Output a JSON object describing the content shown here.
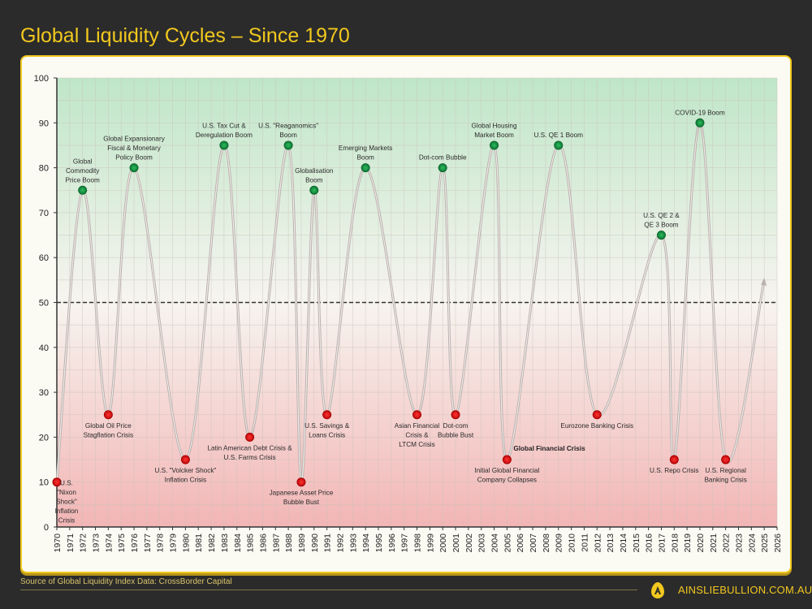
{
  "header": {
    "title": "Global Liquidity Cycles – Since 1970"
  },
  "footer": {
    "source": "Source of Global Liquidity Index Data: CrossBorder Capital",
    "site": "AINSLIEBULLION.COM.AU",
    "logo_letter": "A"
  },
  "colors": {
    "accent": "#f2c81e",
    "boom": "#1a9e4a",
    "crisis": "#e01b1b",
    "line": "#b0aaa8",
    "background": "#2b2b2b"
  },
  "chart_data": {
    "type": "line",
    "title": "Global Liquidity Cycles – Since 1970",
    "xlim": [
      1970,
      2026
    ],
    "ylim": [
      0,
      100
    ],
    "yticks": [
      0,
      10,
      20,
      30,
      40,
      50,
      60,
      70,
      80,
      90,
      100
    ],
    "xticks": [
      1970,
      1971,
      1972,
      1973,
      1974,
      1975,
      1976,
      1977,
      1978,
      1979,
      1980,
      1981,
      1982,
      1983,
      1984,
      1985,
      1986,
      1987,
      1988,
      1989,
      1990,
      1991,
      1992,
      1993,
      1994,
      1995,
      1996,
      1997,
      1998,
      1999,
      2000,
      2001,
      2002,
      2003,
      2004,
      2005,
      2006,
      2007,
      2008,
      2009,
      2010,
      2011,
      2012,
      2013,
      2014,
      2015,
      2016,
      2017,
      2018,
      2019,
      2020,
      2021,
      2022,
      2023,
      2024,
      2025,
      2026
    ],
    "grid": true,
    "reference_line": {
      "y": 50,
      "style": "dashed"
    },
    "background": "gradient green (top) to red (bottom)",
    "events": [
      {
        "x": 1970,
        "y": 10,
        "type": "crisis",
        "label": [
          "U.S.",
          "\"Nixon",
          "Shock\"",
          "Inflation",
          "Crisis"
        ]
      },
      {
        "x": 1972,
        "y": 75,
        "type": "boom",
        "label": [
          "Global",
          "Commodity",
          "Price Boom"
        ]
      },
      {
        "x": 1974,
        "y": 25,
        "type": "crisis",
        "label": [
          "Global Oil Price",
          "Stagflation Crisis"
        ]
      },
      {
        "x": 1976,
        "y": 80,
        "type": "boom",
        "label": [
          "Global Expansionary",
          "Fiscal & Monetary",
          "Policy Boom"
        ]
      },
      {
        "x": 1980,
        "y": 15,
        "type": "crisis",
        "label": [
          "U.S. \"Volcker Shock\"",
          "Inflation Crisis"
        ]
      },
      {
        "x": 1983,
        "y": 85,
        "type": "boom",
        "label": [
          "U.S. Tax Cut &",
          "Deregulation Boom"
        ]
      },
      {
        "x": 1985,
        "y": 20,
        "type": "crisis",
        "label": [
          "Latin American Debt Crisis &",
          "U.S. Farms Crisis"
        ]
      },
      {
        "x": 1988,
        "y": 85,
        "type": "boom",
        "label": [
          "U.S. \"Reaganomics\"",
          "Boom"
        ]
      },
      {
        "x": 1989,
        "y": 10,
        "type": "crisis",
        "label": [
          "Japanese Asset Price",
          "Bubble Bust"
        ]
      },
      {
        "x": 1990,
        "y": 75,
        "type": "boom",
        "label": [
          "Globalisation",
          "Boom"
        ]
      },
      {
        "x": 1991,
        "y": 25,
        "type": "crisis",
        "label": [
          "U.S. Savings &",
          "Loans Crisis"
        ]
      },
      {
        "x": 1994,
        "y": 80,
        "type": "boom",
        "label": [
          "Emerging Markets",
          "Boom"
        ]
      },
      {
        "x": 1998,
        "y": 25,
        "type": "crisis",
        "label": [
          "Asian Financial",
          "Crisis &",
          "LTCM Crisis"
        ]
      },
      {
        "x": 2000,
        "y": 80,
        "type": "boom",
        "label": [
          "Dot-com Bubble"
        ]
      },
      {
        "x": 2001,
        "y": 25,
        "type": "crisis",
        "label": [
          "Dot-com",
          "Bubble Bust"
        ]
      },
      {
        "x": 2004,
        "y": 85,
        "type": "boom",
        "label": [
          "Global Housing",
          "Market Boom"
        ]
      },
      {
        "x": 2005,
        "y": 15,
        "type": "crisis",
        "label": [
          "Initial Global Financial",
          "Company Collapses"
        ]
      },
      {
        "x": 2009,
        "y": 85,
        "type": "boom",
        "label": [
          "U.S. QE 1 Boom"
        ]
      },
      {
        "x": 2012,
        "y": 25,
        "type": "crisis",
        "label": [
          "Eurozone Banking Crisis"
        ]
      },
      {
        "x": 2017,
        "y": 65,
        "type": "boom",
        "label": [
          "U.S. QE 2 &",
          "QE 3 Boom"
        ]
      },
      {
        "x": 2018,
        "y": 15,
        "type": "crisis",
        "label": [
          "U.S. Repo Crisis"
        ]
      },
      {
        "x": 2020,
        "y": 90,
        "type": "boom",
        "label": [
          "COVID-19 Boom"
        ]
      },
      {
        "x": 2022,
        "y": 15,
        "type": "crisis",
        "label": [
          "U.S. Regional",
          "Banking Crisis"
        ]
      }
    ],
    "projection_end": {
      "x": 2025,
      "y": 55
    },
    "annotations": [
      {
        "text": "Global Financial Crisis",
        "x": 2005,
        "y": 15,
        "bold": true
      }
    ]
  }
}
